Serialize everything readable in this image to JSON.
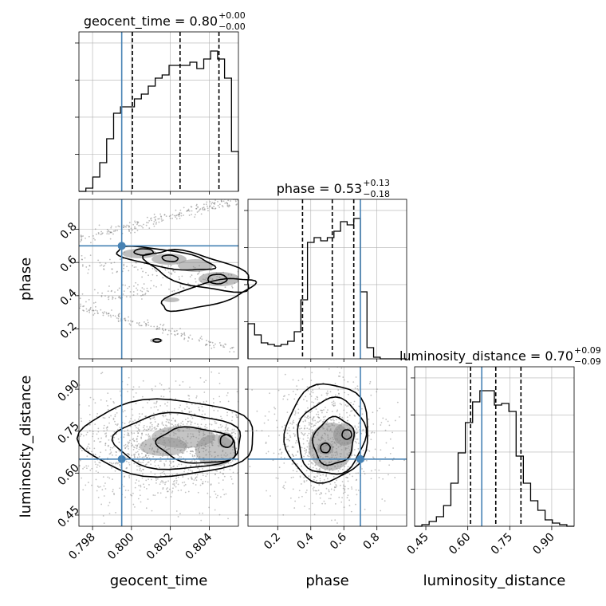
{
  "chart_data": {
    "type": "corner",
    "grid": true,
    "colors": {
      "truth": "#4682b4",
      "hist": "#000000",
      "grid": "#b0b0b0"
    },
    "params": [
      {
        "name": "geocent_time",
        "label": "geocent_time",
        "title": "geocent_time = 0.80",
        "title_sup": "+0.00",
        "title_sub": "−0.00",
        "range": [
          0.7973,
          0.8055
        ],
        "truth": 0.7995,
        "quantiles": [
          0.80005,
          0.8025,
          0.8045
        ],
        "ticks": [
          0.798,
          0.8,
          0.802,
          0.804
        ],
        "tick_labels": [
          "0.798",
          "0.800",
          "0.802",
          "0.804"
        ],
        "hist": [
          0.0,
          0.02,
          0.09,
          0.18,
          0.33,
          0.49,
          0.53,
          0.53,
          0.58,
          0.61,
          0.66,
          0.71,
          0.73,
          0.79,
          0.79,
          0.79,
          0.81,
          0.77,
          0.83,
          0.88,
          0.83,
          0.71,
          0.25
        ]
      },
      {
        "name": "phase",
        "label": "phase",
        "title": "phase = 0.53",
        "title_sup": "+0.13",
        "title_sub": "−0.18",
        "range": [
          0.02,
          0.98
        ],
        "truth": 0.7,
        "quantiles": [
          0.35,
          0.53,
          0.66
        ],
        "ticks": [
          0.2,
          0.4,
          0.6,
          0.8
        ],
        "tick_labels": [
          "0.2",
          "0.4",
          "0.6",
          "0.8"
        ],
        "hist": [
          0.22,
          0.15,
          0.1,
          0.09,
          0.08,
          0.09,
          0.11,
          0.17,
          0.37,
          0.73,
          0.76,
          0.74,
          0.76,
          0.8,
          0.86,
          0.84,
          0.88,
          0.42,
          0.07,
          0.01,
          0.0,
          0.0,
          0.0,
          0.0
        ]
      },
      {
        "name": "luminosity_distance",
        "label": "luminosity_distance",
        "title": "luminosity_distance = 0.70",
        "title_sup": "+0.09",
        "title_sub": "−0.09",
        "range": [
          0.41,
          0.98
        ],
        "truth": 0.65,
        "quantiles": [
          0.61,
          0.7,
          0.79
        ],
        "ticks": [
          0.45,
          0.6,
          0.75,
          0.9
        ],
        "tick_labels": [
          "0.45",
          "0.60",
          "0.75",
          "0.90"
        ],
        "hist": [
          0.0,
          0.01,
          0.03,
          0.06,
          0.13,
          0.27,
          0.46,
          0.65,
          0.78,
          0.85,
          0.85,
          0.76,
          0.77,
          0.72,
          0.44,
          0.27,
          0.16,
          0.1,
          0.04,
          0.02,
          0.01,
          0.0
        ]
      }
    ]
  }
}
